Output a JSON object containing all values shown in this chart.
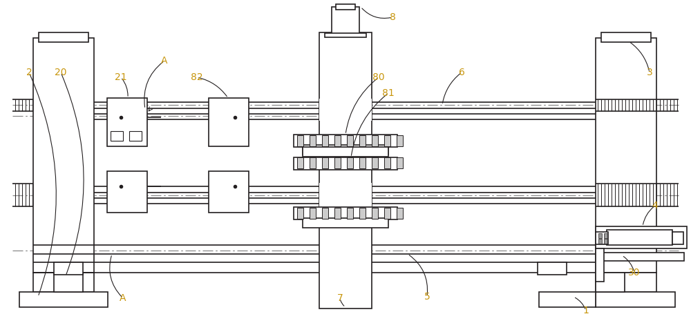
{
  "bg_color": "#ffffff",
  "line_color": "#231f20",
  "dash_color": "#888888",
  "label_color": "#c8960c",
  "figsize": [
    10.0,
    4.68
  ],
  "dpi": 100
}
